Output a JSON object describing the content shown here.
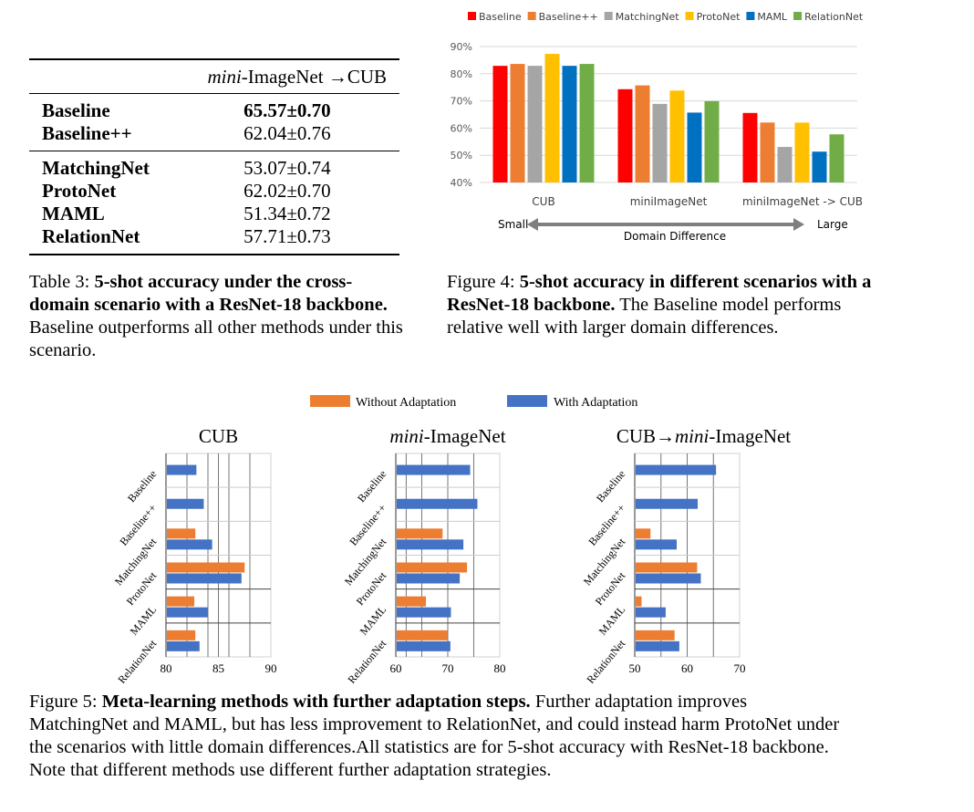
{
  "table3": {
    "header_italic": "mini",
    "header_rest": "-ImageNet →CUB",
    "group1": [
      {
        "method": "Baseline",
        "value": "65.57±0.70",
        "bold": true
      },
      {
        "method": "Baseline++",
        "value": "62.04±0.76",
        "bold": false
      }
    ],
    "group2": [
      {
        "method": "MatchingNet",
        "value": "53.07±0.74"
      },
      {
        "method": "ProtoNet",
        "value": "62.02±0.70"
      },
      {
        "method": "MAML",
        "value": "51.34±0.72"
      },
      {
        "method": "RelationNet",
        "value": "57.71±0.73"
      }
    ],
    "caption_label": "Table 3: ",
    "caption_bold": "5-shot accuracy under the cross-domain scenario with a ResNet-18 backbone.",
    "caption_rest": " Baseline outperforms all other methods under this scenario."
  },
  "figure4": {
    "caption_label": "Figure 4: ",
    "caption_bold": "5-shot accuracy in different scenarios with a ResNet-18 backbone.",
    "caption_rest": " The Baseline model performs relative well with larger domain differences.",
    "arrow_left": "Small",
    "arrow_right": "Large",
    "arrow_label": "Domain  Difference"
  },
  "figure5": {
    "legend": [
      "Without Adaptation",
      "With Adaptation"
    ],
    "caption_label": "Figure 5: ",
    "caption_bold": "Meta-learning methods with further adaptation steps.",
    "caption_rest": " Further adaptation improves MatchingNet and MAML, but has less improvement to RelationNet, and could instead harm ProtoNet under the scenarios with little domain differences.All statistics are for 5-shot accuracy with ResNet-18 backbone. Note that different methods use different further adaptation strategies."
  },
  "chart_data": [
    {
      "type": "bar",
      "categories": [
        "CUB",
        "miniImageNet",
        "miniImageNet  -> CUB"
      ],
      "ylim": [
        40,
        90
      ],
      "yticks": [
        "40%",
        "50%",
        "60%",
        "70%",
        "80%",
        "90%"
      ],
      "grid": true,
      "legend_position": "top",
      "series": [
        {
          "name": "Baseline",
          "color": "#ff0000",
          "values": [
            82.9,
            74.3,
            65.57
          ]
        },
        {
          "name": "Baseline++",
          "color": "#ed7d31",
          "values": [
            83.6,
            75.7,
            62.04
          ]
        },
        {
          "name": "MatchingNet",
          "color": "#a5a5a5",
          "values": [
            82.9,
            68.9,
            53.07
          ]
        },
        {
          "name": "ProtoNet",
          "color": "#ffc000",
          "values": [
            87.3,
            73.8,
            62.02
          ]
        },
        {
          "name": "MAML",
          "color": "#0070c0",
          "values": [
            82.9,
            65.7,
            51.34
          ]
        },
        {
          "name": "RelationNet",
          "color": "#70ad47",
          "values": [
            83.6,
            69.9,
            57.71
          ]
        }
      ]
    },
    {
      "type": "bar",
      "orientation": "horizontal",
      "title": "CUB",
      "categories": [
        "Baseline",
        "Baseline++",
        "MatchingNet",
        "ProtoNet",
        "MAML",
        "RelationNet"
      ],
      "xlim": [
        80,
        90
      ],
      "xticks": [
        "80",
        "85",
        "90"
      ],
      "series": [
        {
          "name": "Without Adaptation",
          "color": "#ed7d31",
          "values": [
            null,
            null,
            82.8,
            87.5,
            82.7,
            82.8
          ]
        },
        {
          "name": "With Adaptation",
          "color": "#4472c4",
          "values": [
            82.9,
            83.6,
            84.4,
            87.2,
            84.0,
            83.2
          ]
        }
      ]
    },
    {
      "type": "bar",
      "orientation": "horizontal",
      "title_italic": "mini",
      "title": "-ImageNet",
      "categories": [
        "Baseline",
        "Baseline++",
        "MatchingNet",
        "ProtoNet",
        "MAML",
        "RelationNet"
      ],
      "xlim": [
        60,
        80
      ],
      "xticks": [
        "60",
        "70",
        "80"
      ],
      "series": [
        {
          "name": "Without Adaptation",
          "color": "#ed7d31",
          "values": [
            null,
            null,
            69.0,
            73.7,
            65.8,
            69.9
          ]
        },
        {
          "name": "With Adaptation",
          "color": "#4472c4",
          "values": [
            74.3,
            75.7,
            73.0,
            72.3,
            70.6,
            70.5
          ]
        }
      ]
    },
    {
      "type": "bar",
      "orientation": "horizontal",
      "title_prefix": "CUB→",
      "title_italic": "mini",
      "title": "-ImageNet",
      "categories": [
        "Baseline",
        "Baseline++",
        "MatchingNet",
        "ProtoNet",
        "MAML",
        "RelationNet"
      ],
      "xlim": [
        50,
        70
      ],
      "xticks": [
        "50",
        "60",
        "70"
      ],
      "series": [
        {
          "name": "Without Adaptation",
          "color": "#ed7d31",
          "values": [
            null,
            null,
            53.0,
            61.9,
            51.3,
            57.6
          ]
        },
        {
          "name": "With Adaptation",
          "color": "#4472c4",
          "values": [
            65.5,
            62.0,
            58.0,
            62.6,
            55.9,
            58.5
          ]
        }
      ]
    }
  ]
}
